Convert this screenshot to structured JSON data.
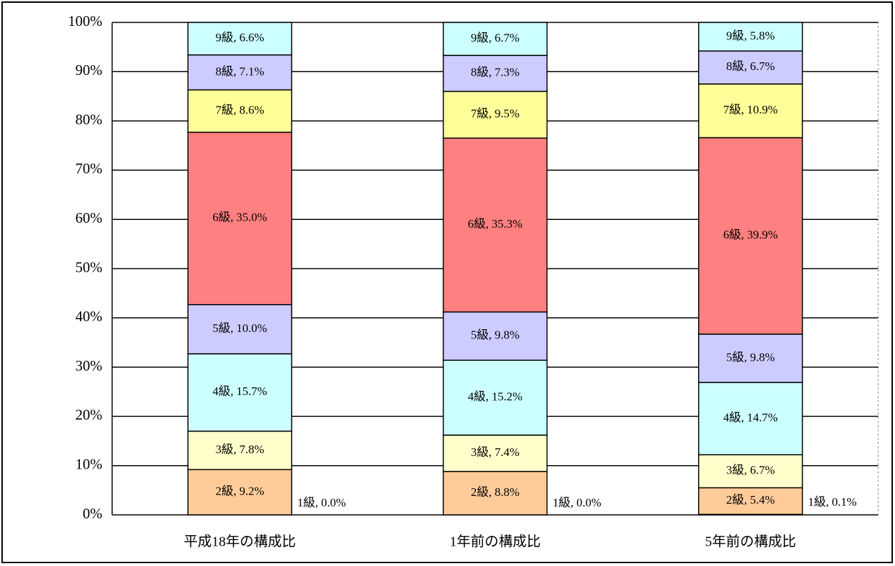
{
  "chart_data": {
    "type": "stacked-bar-100",
    "categories": [
      "平成18年の構成比",
      "1年前の構成比",
      "5年前の構成比"
    ],
    "ylim": [
      0,
      100
    ],
    "yticks": [
      {
        "value": 0,
        "label": "0%"
      },
      {
        "value": 10,
        "label": "10%"
      },
      {
        "value": 20,
        "label": "20%"
      },
      {
        "value": 30,
        "label": "30%"
      },
      {
        "value": 40,
        "label": "40%"
      },
      {
        "value": 50,
        "label": "50%"
      },
      {
        "value": 60,
        "label": "60%"
      },
      {
        "value": 70,
        "label": "70%"
      },
      {
        "value": 80,
        "label": "80%"
      },
      {
        "value": 90,
        "label": "90%"
      },
      {
        "value": 100,
        "label": "100%"
      }
    ],
    "grid": true,
    "series": [
      {
        "name": "1級",
        "color": "#ff99cc",
        "values": [
          0.0,
          0.0,
          0.1
        ],
        "value_labels": [
          "1級, 0.0%",
          "1級, 0.0%",
          "1級, 0.1%"
        ]
      },
      {
        "name": "2級",
        "color": "#ffcc99",
        "values": [
          9.2,
          8.8,
          5.4
        ],
        "value_labels": [
          "2級, 9.2%",
          "2級, 8.8%",
          "2級, 5.4%"
        ]
      },
      {
        "name": "3級",
        "color": "#ffffcc",
        "values": [
          7.8,
          7.4,
          6.7
        ],
        "value_labels": [
          "3級, 7.8%",
          "3級, 7.4%",
          "3級, 6.7%"
        ]
      },
      {
        "name": "4級",
        "color": "#ccffff",
        "values": [
          15.7,
          15.2,
          14.7
        ],
        "value_labels": [
          "4級, 15.7%",
          "4級, 15.2%",
          "4級, 14.7%"
        ]
      },
      {
        "name": "5級",
        "color": "#ccccff",
        "values": [
          10.0,
          9.8,
          9.8
        ],
        "value_labels": [
          "5級, 10.0%",
          "5級, 9.8%",
          "5級, 9.8%"
        ]
      },
      {
        "name": "6級",
        "color": "#ff8080",
        "values": [
          35.0,
          35.3,
          39.9
        ],
        "value_labels": [
          "6級, 35.0%",
          "6級, 35.3%",
          "6級, 39.9%"
        ]
      },
      {
        "name": "7級",
        "color": "#ffff99",
        "values": [
          8.6,
          9.5,
          10.9
        ],
        "value_labels": [
          "7級, 8.6%",
          "7級, 9.5%",
          "7級, 10.9%"
        ]
      },
      {
        "name": "8級",
        "color": "#ccccff",
        "values": [
          7.1,
          7.3,
          6.7
        ],
        "value_labels": [
          "8級, 7.1%",
          "8級, 7.3%",
          "8級, 6.7%"
        ]
      },
      {
        "name": "9級",
        "color": "#ccffff",
        "values": [
          6.6,
          6.7,
          5.8
        ],
        "value_labels": [
          "9級, 6.6%",
          "9級, 6.7%",
          "9級, 5.8%"
        ]
      }
    ]
  }
}
